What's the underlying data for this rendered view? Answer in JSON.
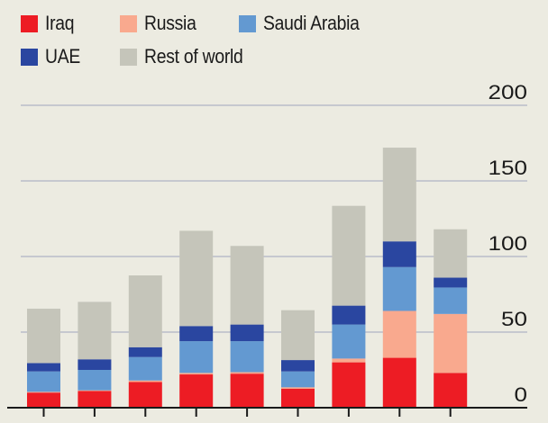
{
  "chart_data": {
    "type": "bar",
    "stacked": true,
    "title": "",
    "xlabel": "",
    "ylabel": "",
    "ylim": [
      0,
      200
    ],
    "yticks": [
      0,
      50,
      100,
      150,
      200
    ],
    "ytick_labels": [
      "0",
      "50",
      "100",
      "150",
      "200"
    ],
    "y_axis_side": "right",
    "grid": true,
    "legend_placement": "top-left",
    "categories": [
      "",
      "",
      "",
      "",
      "",
      "",
      "",
      "",
      ""
    ],
    "series": [
      {
        "name": "Iraq",
        "color": "#ed1c24",
        "values": [
          10,
          11,
          17,
          22,
          22.5,
          12.5,
          30,
          33,
          23
        ]
      },
      {
        "name": "Russia",
        "color": "#f9a98e",
        "values": [
          0.5,
          0.5,
          1,
          1,
          1,
          1,
          2.5,
          31,
          39
        ]
      },
      {
        "name": "Saudi Arabia",
        "color": "#6399d1",
        "values": [
          13.5,
          13.5,
          15.5,
          21,
          20.5,
          10.5,
          22.5,
          29,
          17.5
        ]
      },
      {
        "name": "UAE",
        "color": "#2a46a0",
        "values": [
          5.5,
          7,
          6.5,
          10,
          11,
          7.5,
          12.5,
          17,
          6.5
        ]
      },
      {
        "name": "Rest of world",
        "color": "#c5c5ba",
        "values": [
          36,
          38,
          47.5,
          63,
          52,
          33,
          66,
          62,
          32
        ]
      }
    ]
  }
}
